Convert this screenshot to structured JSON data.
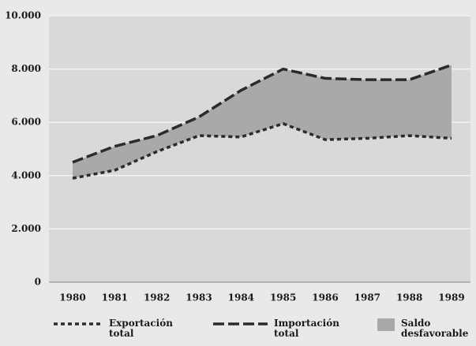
{
  "chart_data": {
    "type": "line",
    "categories": [
      "1980",
      "1981",
      "1982",
      "1983",
      "1984",
      "1985",
      "1986",
      "1987",
      "1988",
      "1989"
    ],
    "series": [
      {
        "name": "Exportación total",
        "color": "#2b2b2b",
        "dash": "5 4",
        "values": [
          3900,
          4200,
          4900,
          5500,
          5450,
          5950,
          5350,
          5400,
          5500,
          5400
        ]
      },
      {
        "name": "Importación total",
        "color": "#2b2b2b",
        "dash": "14 5",
        "values": [
          4500,
          5100,
          5500,
          6200,
          7200,
          8000,
          7650,
          7600,
          7600,
          8150
        ]
      }
    ],
    "area_fill": {
      "name": "Saldo desfavorable",
      "color": "#a9a9a7"
    },
    "ylim": [
      0,
      10000
    ],
    "yticks": [
      0,
      {
        "value": 2000,
        "label": "2.000"
      },
      {
        "value": 4000,
        "label": "4.000"
      },
      {
        "value": 6000,
        "label": "6.000"
      },
      {
        "value": 8000,
        "label": "8.000"
      },
      {
        "value": 10000,
        "label": "10.000"
      }
    ],
    "grid": true
  }
}
